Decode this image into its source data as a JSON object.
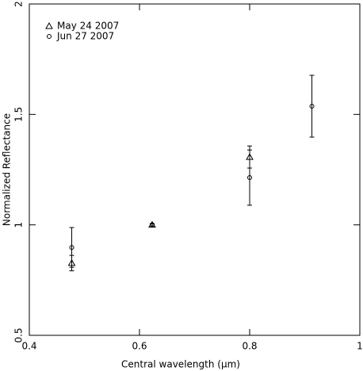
{
  "chart_data": {
    "type": "scatter",
    "xlabel": "Central wavelength (μm)",
    "ylabel": "Normalized Reflectance",
    "xlim": [
      0.4,
      1
    ],
    "xticks": [
      0.4,
      0.6,
      0.8,
      1
    ],
    "ylim": [
      0.5,
      2
    ],
    "yticks": [
      0.5,
      1,
      1.5,
      2
    ],
    "legend": "upper left",
    "series": [
      {
        "name": "May 24 2007",
        "marker": "triangle",
        "color": "#000000",
        "x": [
          0.477,
          0.623,
          0.8
        ],
        "values": [
          0.827,
          1.0,
          1.307
        ],
        "errors": [
          0.035,
          0.005,
          0.05
        ]
      },
      {
        "name": "Jun 27 2007",
        "marker": "circle",
        "color": "#000000",
        "x": [
          0.477,
          0.623,
          0.8,
          0.913
        ],
        "values": [
          0.898,
          1.0,
          1.214,
          1.537
        ],
        "errors": [
          0.09,
          0.005,
          0.125,
          0.14
        ]
      }
    ]
  }
}
